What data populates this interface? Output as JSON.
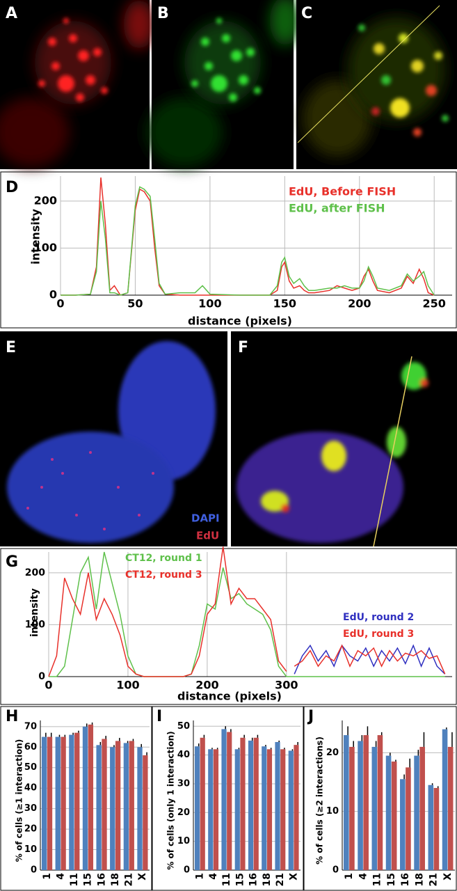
{
  "panel_labels": [
    "A",
    "B",
    "C",
    "E",
    "F"
  ],
  "image_legend": [
    "DAPI",
    "EdU"
  ],
  "chart_data": [
    {
      "type": "line",
      "panel_label": "D",
      "xlabel": "distance (pixels)",
      "ylabel": "intensity",
      "xlim": [
        0,
        262
      ],
      "xticks": [
        0,
        50,
        100,
        150,
        200,
        250
      ],
      "ylim": [
        0,
        253
      ],
      "yticks": [
        0,
        100,
        200
      ],
      "grid": true,
      "x": [
        0,
        10,
        20,
        24,
        27,
        30,
        33,
        36,
        40,
        45,
        50,
        53,
        56,
        60,
        63,
        66,
        70,
        80,
        90,
        95,
        100,
        120,
        140,
        145,
        148,
        150,
        153,
        156,
        160,
        163,
        166,
        170,
        180,
        185,
        190,
        195,
        200,
        203,
        206,
        209,
        212,
        220,
        228,
        232,
        236,
        240,
        243,
        246,
        250
      ],
      "series": [
        {
          "name": "EdU, Before FISH",
          "color": "#e8302a",
          "values": [
            0,
            0,
            2,
            60,
            250,
            150,
            10,
            20,
            0,
            5,
            180,
            225,
            220,
            200,
            100,
            20,
            2,
            0,
            0,
            0,
            0,
            0,
            0,
            10,
            60,
            70,
            30,
            15,
            20,
            10,
            5,
            5,
            10,
            20,
            15,
            10,
            15,
            40,
            55,
            30,
            10,
            5,
            15,
            40,
            25,
            55,
            35,
            5,
            0
          ]
        },
        {
          "name": "EdU, after FISH",
          "color": "#5ec04a",
          "values": [
            0,
            0,
            2,
            50,
            200,
            120,
            5,
            5,
            0,
            5,
            190,
            230,
            225,
            210,
            120,
            25,
            2,
            5,
            5,
            20,
            2,
            0,
            0,
            20,
            70,
            80,
            40,
            25,
            35,
            20,
            10,
            10,
            15,
            15,
            20,
            15,
            15,
            30,
            60,
            40,
            15,
            10,
            20,
            45,
            30,
            40,
            50,
            20,
            0
          ]
        }
      ]
    },
    {
      "type": "line",
      "panel_label": "G",
      "xlabel": "distance (pixels)",
      "ylabel": "intensity",
      "xlim": [
        0,
        509
      ],
      "xticks": [
        0,
        100,
        200,
        300
      ],
      "ylim": [
        0,
        240
      ],
      "yticks": [
        0,
        100,
        200
      ],
      "grid": true,
      "x": [
        0,
        10,
        20,
        30,
        40,
        50,
        60,
        70,
        80,
        90,
        100,
        110,
        120,
        130,
        140,
        150,
        160,
        170,
        180,
        190,
        200,
        210,
        220,
        230,
        240,
        250,
        260,
        270,
        280,
        290,
        300,
        310,
        320,
        330,
        340,
        350,
        360,
        370,
        380,
        390,
        400,
        410,
        420,
        430,
        440,
        450,
        460,
        470,
        480,
        490,
        500
      ],
      "series": [
        {
          "name": "CT12, round 1",
          "color": "#5ec04a",
          "values": [
            0,
            0,
            20,
            110,
            200,
            230,
            130,
            240,
            180,
            120,
            40,
            5,
            0,
            0,
            0,
            0,
            0,
            0,
            5,
            60,
            140,
            130,
            210,
            150,
            160,
            140,
            130,
            120,
            90,
            20,
            0,
            0,
            0,
            0,
            0,
            0,
            0,
            0,
            0,
            0,
            0,
            0,
            0,
            0,
            0,
            0,
            0,
            0,
            0,
            0,
            0
          ]
        },
        {
          "name": "CT12, round 3",
          "color": "#e8302a",
          "values": [
            0,
            40,
            190,
            150,
            120,
            200,
            110,
            150,
            120,
            80,
            20,
            5,
            0,
            0,
            0,
            0,
            0,
            0,
            5,
            40,
            120,
            140,
            250,
            140,
            170,
            150,
            150,
            130,
            110,
            30,
            10,
            null,
            null,
            null,
            null,
            null,
            null,
            null,
            null,
            null,
            null,
            null,
            null,
            null,
            null,
            null,
            null,
            null,
            null,
            null,
            null
          ]
        },
        {
          "name": "EdU, round 2",
          "color": "#3030c0",
          "values": [
            null,
            null,
            null,
            null,
            null,
            null,
            null,
            null,
            null,
            null,
            null,
            null,
            null,
            null,
            null,
            null,
            null,
            null,
            null,
            null,
            null,
            null,
            null,
            null,
            null,
            null,
            null,
            null,
            null,
            null,
            null,
            5,
            40,
            60,
            30,
            50,
            20,
            60,
            40,
            30,
            55,
            20,
            50,
            30,
            55,
            25,
            60,
            20,
            55,
            20,
            5
          ]
        },
        {
          "name": "EdU, round 3",
          "color": "#e8302a",
          "values": [
            null,
            null,
            null,
            null,
            null,
            null,
            null,
            null,
            null,
            null,
            null,
            null,
            null,
            null,
            null,
            null,
            null,
            null,
            null,
            null,
            null,
            null,
            null,
            null,
            null,
            null,
            null,
            null,
            null,
            null,
            null,
            20,
            30,
            50,
            20,
            40,
            30,
            60,
            20,
            50,
            40,
            55,
            20,
            50,
            30,
            45,
            40,
            50,
            35,
            40,
            5
          ]
        }
      ]
    },
    {
      "type": "bar",
      "panel_label": "H",
      "ylabel": "% of cells (≥1 interaction)",
      "categories": [
        "1",
        "4",
        "11",
        "15",
        "16",
        "18",
        "21",
        "X"
      ],
      "ylim": [
        0,
        73
      ],
      "yticks": [
        0,
        10,
        20,
        30,
        40,
        50,
        60,
        70
      ],
      "grid": true,
      "series": [
        {
          "color": "#4f81bd",
          "values": [
            65,
            65,
            66,
            70,
            61,
            60,
            62,
            60
          ],
          "errors": [
            2,
            1,
            1,
            1.5,
            1.5,
            1,
            1,
            1.5
          ]
        },
        {
          "color": "#c0504d",
          "values": [
            65,
            65,
            67,
            71,
            64,
            63,
            63,
            56
          ],
          "errors": [
            2,
            1,
            1,
            1,
            1.5,
            1.5,
            1,
            1.5
          ]
        }
      ]
    },
    {
      "type": "bar",
      "panel_label": "I",
      "ylabel": "% of cells (only 1 interaction)",
      "categories": [
        "1",
        "4",
        "11",
        "15",
        "16",
        "18",
        "21",
        "X"
      ],
      "ylim": [
        0,
        52
      ],
      "yticks": [
        0,
        10,
        20,
        30,
        40,
        50
      ],
      "grid": true,
      "series": [
        {
          "color": "#4f81bd",
          "values": [
            43,
            42,
            49,
            42,
            45,
            43,
            44.5,
            41.5
          ],
          "errors": [
            1,
            0.5,
            1,
            0.5,
            1,
            0.5,
            0.5,
            0.5
          ]
        },
        {
          "color": "#c0504d",
          "values": [
            46,
            42,
            48,
            46,
            46,
            42,
            42,
            43.5
          ],
          "errors": [
            1,
            0.5,
            1,
            1,
            1,
            0.5,
            0.5,
            1
          ]
        }
      ]
    },
    {
      "type": "bar",
      "panel_label": "J",
      "ylabel": "% of cells (≥2 interactions)",
      "categories": [
        "1",
        "4",
        "11",
        "15",
        "16",
        "18",
        "21",
        "X"
      ],
      "ylim": [
        0,
        25.5
      ],
      "yticks": [
        0,
        10,
        20
      ],
      "grid": true,
      "series": [
        {
          "color": "#4f81bd",
          "values": [
            23,
            22,
            21,
            19.5,
            15.5,
            19.5,
            14.5,
            24
          ],
          "errors": [
            1.5,
            1,
            1,
            0.5,
            0.8,
            1,
            0.3,
            0.3
          ]
        },
        {
          "color": "#c0504d",
          "values": [
            21,
            23,
            23,
            18.5,
            17.5,
            21,
            14,
            21
          ],
          "errors": [
            1,
            1.5,
            0.5,
            0.3,
            1.5,
            2.5,
            0.3,
            2.5
          ]
        }
      ]
    }
  ]
}
